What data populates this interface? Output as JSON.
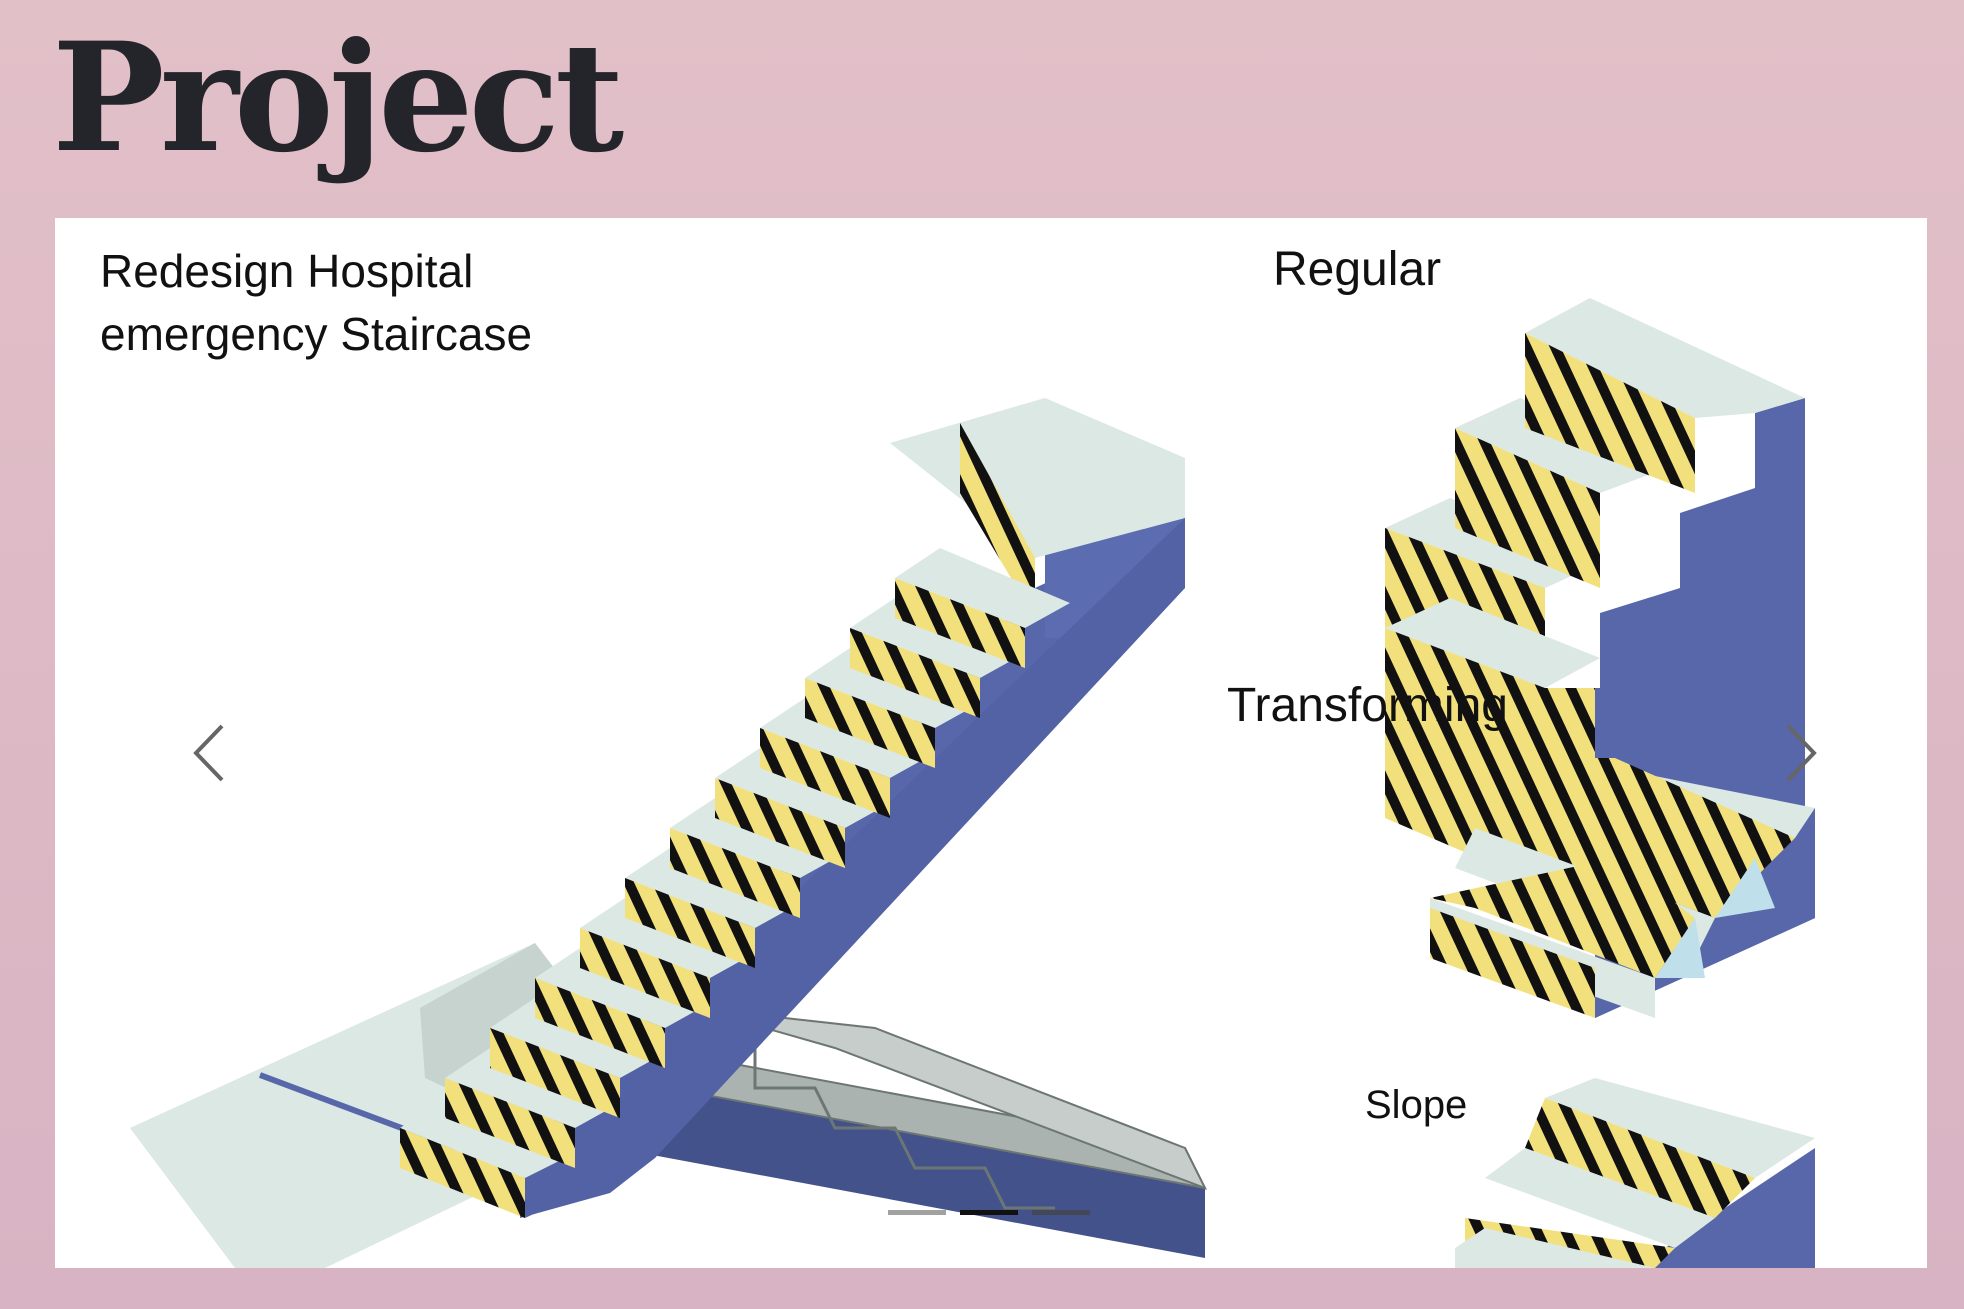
{
  "page": {
    "title": "Project"
  },
  "carousel": {
    "captions": {
      "main": "Redesign Hospital\nemergency Staircase",
      "regular": "Regular",
      "transforming": "Transforming",
      "slope": "Slope"
    },
    "prev_icon": "chevron-left-icon",
    "next_icon": "chevron-right-icon",
    "active_slide": 2,
    "slide_count": 3
  },
  "colors": {
    "background": "#e0bfc8",
    "title": "#24252a",
    "stair_tread": "#dbe8e4",
    "stair_side": "#5767a9",
    "stripe_yellow": "#f2e07c",
    "stripe_black": "#111111",
    "indicator_active": "#111111",
    "indicator_inactive": "#444444"
  }
}
